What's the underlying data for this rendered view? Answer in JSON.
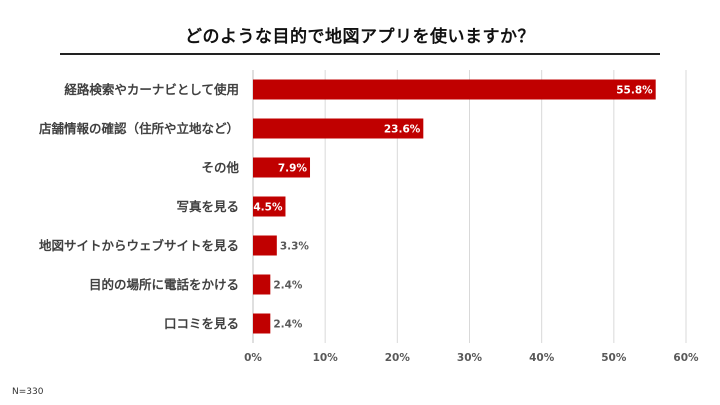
{
  "chart_data": {
    "type": "bar",
    "orientation": "horizontal",
    "title": "どのような目的で地図アプリを使いますか？",
    "categories": [
      "経路検索やカーナビとして使用",
      "店舗情報の確認（住所や立地など）",
      "その他",
      "写真を見る",
      "地図サイトからウェブサイトを見る",
      "目的の場所に電話をかける",
      "口コミを見る"
    ],
    "values": [
      55.8,
      23.6,
      7.9,
      4.5,
      3.3,
      2.4,
      2.4
    ],
    "value_labels": [
      "55.8%",
      "23.6%",
      "7.9%",
      "4.5%",
      "3.3%",
      "2.4%",
      "2.4%"
    ],
    "xlim": [
      0,
      60
    ],
    "xticks": [
      0,
      10,
      20,
      30,
      40,
      50,
      60
    ],
    "xtick_labels": [
      "0%",
      "10%",
      "20%",
      "30%",
      "40%",
      "50%",
      "60%"
    ],
    "grid": "vertical",
    "legend": "none",
    "bar_color": "#c00000",
    "footnote": "N=330"
  }
}
